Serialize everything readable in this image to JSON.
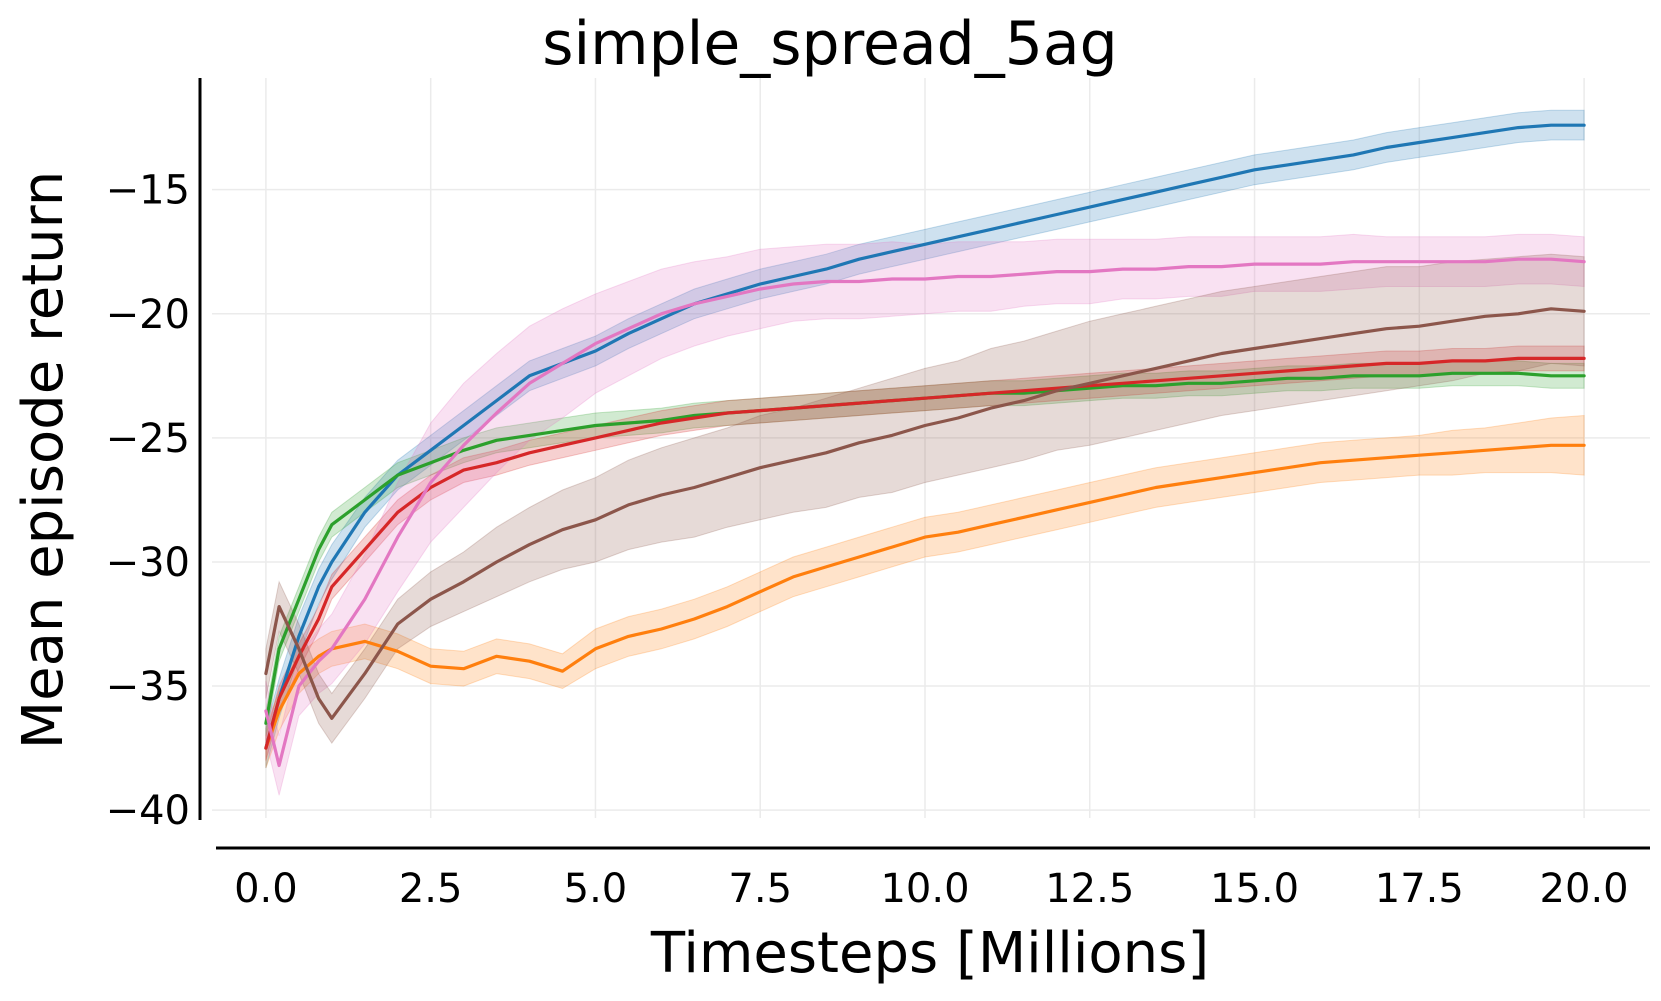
{
  "chart_data": {
    "type": "line",
    "title": "simple_spread_5ag",
    "xlabel": "Timesteps [Millions]",
    "ylabel": "Mean episode return",
    "xlim": [
      -1.0,
      21.0
    ],
    "ylim": [
      -40.8,
      -10.5
    ],
    "xticks": [
      0.0,
      2.5,
      5.0,
      7.5,
      10.0,
      12.5,
      15.0,
      17.5,
      20.0
    ],
    "xtick_labels": [
      "0.0",
      "2.5",
      "5.0",
      "7.5",
      "10.0",
      "12.5",
      "15.0",
      "17.5",
      "20.0"
    ],
    "yticks": [
      -40,
      -35,
      -30,
      -25,
      -20,
      -15
    ],
    "ytick_labels": [
      "−40",
      "−35",
      "−30",
      "−25",
      "−20",
      "−15"
    ],
    "grid": true,
    "legend": false,
    "shaded_band": "variability band around each line",
    "series": [
      {
        "color": "#1f77b4",
        "x": [
          0.0,
          0.2,
          0.5,
          0.8,
          1.0,
          1.5,
          2.0,
          2.5,
          3.0,
          3.5,
          4.0,
          4.5,
          5.0,
          5.5,
          6.0,
          6.5,
          7.0,
          7.5,
          8.0,
          8.5,
          9.0,
          9.5,
          10.0,
          10.5,
          11.0,
          11.5,
          12.0,
          12.5,
          13.0,
          13.5,
          14.0,
          14.5,
          15.0,
          15.5,
          16.0,
          16.5,
          17.0,
          17.5,
          18.0,
          18.5,
          19.0,
          19.5,
          20.0
        ],
        "y": [
          -37.5,
          -35.5,
          -33.0,
          -31.0,
          -30.0,
          -28.0,
          -26.5,
          -25.5,
          -24.5,
          -23.5,
          -22.5,
          -22.0,
          -21.5,
          -20.8,
          -20.2,
          -19.6,
          -19.2,
          -18.8,
          -18.5,
          -18.2,
          -17.8,
          -17.5,
          -17.2,
          -16.9,
          -16.6,
          -16.3,
          -16.0,
          -15.7,
          -15.4,
          -15.1,
          -14.8,
          -14.5,
          -14.2,
          -14.0,
          -13.8,
          -13.6,
          -13.3,
          -13.1,
          -12.9,
          -12.7,
          -12.5,
          -12.4,
          -12.4
        ],
        "band": [
          0.8,
          0.8,
          0.8,
          0.7,
          0.7,
          0.6,
          0.6,
          0.6,
          0.6,
          0.6,
          0.6,
          0.6,
          0.6,
          0.6,
          0.6,
          0.6,
          0.6,
          0.6,
          0.6,
          0.6,
          0.6,
          0.6,
          0.6,
          0.6,
          0.6,
          0.6,
          0.6,
          0.6,
          0.6,
          0.6,
          0.6,
          0.6,
          0.6,
          0.6,
          0.6,
          0.6,
          0.6,
          0.6,
          0.6,
          0.6,
          0.6,
          0.6,
          0.6
        ]
      },
      {
        "color": "#ff7f0e",
        "x": [
          0.0,
          0.2,
          0.5,
          0.8,
          1.0,
          1.5,
          2.0,
          2.5,
          3.0,
          3.5,
          4.0,
          4.5,
          5.0,
          5.5,
          6.0,
          6.5,
          7.0,
          7.5,
          8.0,
          8.5,
          9.0,
          9.5,
          10.0,
          10.5,
          11.0,
          11.5,
          12.0,
          12.5,
          13.0,
          13.5,
          14.0,
          14.5,
          15.0,
          15.5,
          16.0,
          16.5,
          17.0,
          17.5,
          18.0,
          18.5,
          19.0,
          19.5,
          20.0
        ],
        "y": [
          -37.5,
          -36.0,
          -34.5,
          -33.8,
          -33.5,
          -33.2,
          -33.6,
          -34.2,
          -34.3,
          -33.8,
          -34.0,
          -34.4,
          -33.5,
          -33.0,
          -32.7,
          -32.3,
          -31.8,
          -31.2,
          -30.6,
          -30.2,
          -29.8,
          -29.4,
          -29.0,
          -28.8,
          -28.5,
          -28.2,
          -27.9,
          -27.6,
          -27.3,
          -27.0,
          -26.8,
          -26.6,
          -26.4,
          -26.2,
          -26.0,
          -25.9,
          -25.8,
          -25.7,
          -25.6,
          -25.5,
          -25.4,
          -25.3,
          -25.3
        ],
        "band": [
          0.8,
          0.8,
          0.8,
          0.7,
          0.7,
          0.7,
          0.7,
          0.7,
          0.7,
          0.7,
          0.7,
          0.7,
          0.8,
          0.8,
          0.8,
          0.8,
          0.8,
          0.8,
          0.8,
          0.8,
          0.8,
          0.8,
          0.8,
          0.8,
          0.8,
          0.8,
          0.8,
          0.8,
          0.8,
          0.8,
          0.8,
          0.8,
          0.8,
          0.8,
          0.8,
          0.8,
          0.8,
          0.8,
          0.9,
          0.9,
          1.0,
          1.1,
          1.2
        ]
      },
      {
        "color": "#2ca02c",
        "x": [
          0.0,
          0.2,
          0.5,
          0.8,
          1.0,
          1.5,
          2.0,
          2.5,
          3.0,
          3.5,
          4.0,
          4.5,
          5.0,
          5.5,
          6.0,
          6.5,
          7.0,
          7.5,
          8.0,
          8.5,
          9.0,
          9.5,
          10.0,
          10.5,
          11.0,
          11.5,
          12.0,
          12.5,
          13.0,
          13.5,
          14.0,
          14.5,
          15.0,
          15.5,
          16.0,
          16.5,
          17.0,
          17.5,
          18.0,
          18.5,
          19.0,
          19.5,
          20.0
        ],
        "y": [
          -36.5,
          -33.5,
          -31.5,
          -29.5,
          -28.5,
          -27.5,
          -26.5,
          -26.0,
          -25.5,
          -25.1,
          -24.9,
          -24.7,
          -24.5,
          -24.4,
          -24.3,
          -24.1,
          -24.0,
          -23.9,
          -23.8,
          -23.7,
          -23.6,
          -23.5,
          -23.4,
          -23.3,
          -23.2,
          -23.2,
          -23.1,
          -23.0,
          -22.9,
          -22.9,
          -22.8,
          -22.8,
          -22.7,
          -22.6,
          -22.6,
          -22.5,
          -22.5,
          -22.5,
          -22.4,
          -22.4,
          -22.4,
          -22.5,
          -22.5
        ]
      },
      {
        "color": "#d62728",
        "x": [
          0.0,
          0.2,
          0.5,
          0.8,
          1.0,
          1.5,
          2.0,
          2.5,
          3.0,
          3.5,
          4.0,
          4.5,
          5.0,
          5.5,
          6.0,
          6.5,
          7.0,
          7.5,
          8.0,
          8.5,
          9.0,
          9.5,
          10.0,
          10.5,
          11.0,
          11.5,
          12.0,
          12.5,
          13.0,
          13.5,
          14.0,
          14.5,
          15.0,
          15.5,
          16.0,
          16.5,
          17.0,
          17.5,
          18.0,
          18.5,
          19.0,
          19.5,
          20.0
        ],
        "y": [
          -37.5,
          -35.5,
          -33.8,
          -32.3,
          -31.0,
          -29.5,
          -28.0,
          -27.0,
          -26.3,
          -26.0,
          -25.6,
          -25.3,
          -25.0,
          -24.7,
          -24.4,
          -24.2,
          -24.0,
          -23.9,
          -23.8,
          -23.7,
          -23.6,
          -23.5,
          -23.4,
          -23.3,
          -23.2,
          -23.1,
          -23.0,
          -22.9,
          -22.8,
          -22.7,
          -22.6,
          -22.5,
          -22.4,
          -22.3,
          -22.2,
          -22.1,
          -22.0,
          -22.0,
          -21.9,
          -21.9,
          -21.8,
          -21.8,
          -21.8
        ]
      },
      {
        "color": "#e377c2",
        "x": [
          0.0,
          0.2,
          0.5,
          0.8,
          1.0,
          1.5,
          2.0,
          2.5,
          3.0,
          3.5,
          4.0,
          4.5,
          5.0,
          5.5,
          6.0,
          6.5,
          7.0,
          7.5,
          8.0,
          8.5,
          9.0,
          9.5,
          10.0,
          10.5,
          11.0,
          11.5,
          12.0,
          12.5,
          13.0,
          13.5,
          14.0,
          14.5,
          15.0,
          15.5,
          16.0,
          16.5,
          17.0,
          17.5,
          18.0,
          18.5,
          19.0,
          19.5,
          20.0
        ],
        "y": [
          -36.0,
          -38.2,
          -35.0,
          -34.0,
          -33.5,
          -31.5,
          -29.0,
          -26.8,
          -25.3,
          -24.0,
          -22.8,
          -22.0,
          -21.2,
          -20.6,
          -20.0,
          -19.6,
          -19.3,
          -19.0,
          -18.8,
          -18.7,
          -18.7,
          -18.6,
          -18.6,
          -18.5,
          -18.5,
          -18.4,
          -18.3,
          -18.3,
          -18.2,
          -18.2,
          -18.1,
          -18.1,
          -18.0,
          -18.0,
          -18.0,
          -17.9,
          -17.9,
          -17.9,
          -17.9,
          -17.9,
          -17.8,
          -17.8,
          -17.9
        ],
        "band": [
          1.2,
          1.2,
          1.2,
          1.3,
          1.4,
          1.8,
          2.2,
          2.4,
          2.5,
          2.4,
          2.3,
          2.2,
          2.0,
          1.9,
          1.8,
          1.7,
          1.6,
          1.6,
          1.5,
          1.5,
          1.5,
          1.5,
          1.4,
          1.4,
          1.4,
          1.3,
          1.3,
          1.3,
          1.2,
          1.2,
          1.2,
          1.2,
          1.1,
          1.1,
          1.1,
          1.1,
          1.0,
          1.0,
          1.0,
          1.0,
          1.0,
          1.0,
          1.0
        ]
      },
      {
        "color": "#8c564b",
        "x": [
          0.0,
          0.2,
          0.5,
          0.8,
          1.0,
          1.5,
          2.0,
          2.5,
          3.0,
          3.5,
          4.0,
          4.5,
          5.0,
          5.5,
          6.0,
          6.5,
          7.0,
          7.5,
          8.0,
          8.5,
          9.0,
          9.5,
          10.0,
          10.5,
          11.0,
          11.5,
          12.0,
          12.5,
          13.0,
          13.5,
          14.0,
          14.5,
          15.0,
          15.5,
          16.0,
          16.5,
          17.0,
          17.5,
          18.0,
          18.5,
          19.0,
          19.5,
          20.0
        ],
        "y": [
          -34.5,
          -31.8,
          -33.5,
          -35.5,
          -36.3,
          -34.5,
          -32.5,
          -31.5,
          -30.8,
          -30.0,
          -29.3,
          -28.7,
          -28.3,
          -27.7,
          -27.3,
          -27.0,
          -26.6,
          -26.2,
          -25.9,
          -25.6,
          -25.2,
          -24.9,
          -24.5,
          -24.2,
          -23.8,
          -23.5,
          -23.1,
          -22.8,
          -22.5,
          -22.2,
          -21.9,
          -21.6,
          -21.4,
          -21.2,
          -21.0,
          -20.8,
          -20.6,
          -20.5,
          -20.3,
          -20.1,
          -20.0,
          -19.8,
          -19.9
        ],
        "band": [
          1.0,
          1.0,
          1.0,
          1.0,
          1.0,
          1.0,
          1.0,
          1.1,
          1.2,
          1.4,
          1.5,
          1.6,
          1.7,
          1.8,
          1.9,
          2.0,
          2.0,
          2.1,
          2.1,
          2.2,
          2.2,
          2.3,
          2.3,
          2.3,
          2.4,
          2.4,
          2.4,
          2.5,
          2.5,
          2.5,
          2.5,
          2.5,
          2.5,
          2.5,
          2.5,
          2.5,
          2.5,
          2.4,
          2.4,
          2.3,
          2.3,
          2.2,
          2.2
        ]
      }
    ]
  }
}
